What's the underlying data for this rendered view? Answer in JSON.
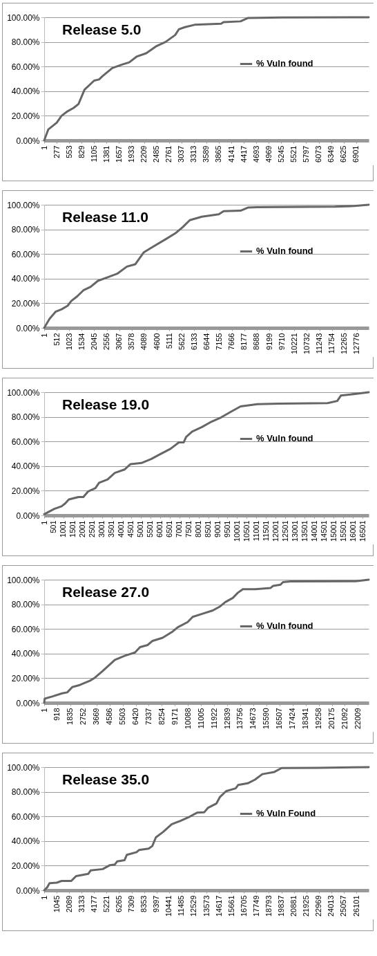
{
  "chart_data": [
    {
      "type": "line",
      "title": "Release 5.0",
      "legend": "right",
      "grid": "y",
      "xlim": [
        1,
        7180
      ],
      "xticks": [
        1,
        277,
        553,
        829,
        1105,
        1381,
        1657,
        1933,
        2209,
        2485,
        2761,
        3037,
        3313,
        3589,
        3865,
        4141,
        4417,
        4693,
        4969,
        5245,
        5521,
        5797,
        6073,
        6349,
        6625,
        6901
      ],
      "ylim": [
        0,
        100
      ],
      "yticks": [
        {
          "value": 0,
          "label": "0.00%"
        },
        {
          "value": 20,
          "label": "20.00%"
        },
        {
          "value": 40,
          "label": "40.00%"
        },
        {
          "value": 60,
          "label": "60.00%"
        },
        {
          "value": 80,
          "label": "80.00%"
        },
        {
          "value": 100,
          "label": "100.00%"
        }
      ],
      "x": [
        1,
        91,
        278,
        385,
        519,
        652,
        760,
        893,
        1107,
        1214,
        1294,
        1508,
        1722,
        1882,
        2043,
        2257,
        2471,
        2685,
        2899,
        2979,
        3113,
        3327,
        3915,
        3968,
        4343,
        4503,
        5252,
        7180
      ],
      "series": [
        {
          "name": "% Vuln found",
          "color": "#666666",
          "values": [
            0,
            8.9,
            14.4,
            20,
            23.7,
            26.4,
            29.6,
            41.2,
            48.6,
            49.5,
            52.3,
            58.8,
            61.6,
            63.4,
            68,
            70.8,
            76.3,
            80,
            85.6,
            90.2,
            92,
            93.9,
            94.8,
            96.1,
            96.7,
            99.4,
            99.8,
            100
          ]
        }
      ]
    },
    {
      "type": "line",
      "title": "Release 11.0",
      "legend": "right",
      "grid": "y",
      "xlim": [
        1,
        13260
      ],
      "xticks": [
        1,
        512,
        1023,
        1534,
        2045,
        2556,
        3067,
        3578,
        4089,
        4600,
        5111,
        5622,
        6133,
        6644,
        7155,
        7666,
        8177,
        8688,
        9199,
        9710,
        10221,
        10732,
        11243,
        11754,
        12265,
        12776
      ],
      "ylim": [
        0,
        100
      ],
      "yticks": [
        {
          "value": 0,
          "label": "0.00%"
        },
        {
          "value": 20,
          "label": "20.00%"
        },
        {
          "value": 40,
          "label": "40.00%"
        },
        {
          "value": 60,
          "label": "60.00%"
        },
        {
          "value": 80,
          "label": "80.00%"
        },
        {
          "value": 100,
          "label": "100.00%"
        }
      ],
      "x": [
        1,
        218,
        465,
        712,
        959,
        1107,
        1354,
        1601,
        1898,
        2194,
        2590,
        2985,
        3380,
        3726,
        4072,
        4467,
        4961,
        5357,
        5653,
        5950,
        6444,
        7136,
        7333,
        8025,
        8322,
        8717,
        11879,
        12670,
        13260
      ],
      "series": [
        {
          "name": "% Vuln found",
          "color": "#666666",
          "values": [
            0,
            7.3,
            13.1,
            15.1,
            18,
            21.8,
            25.7,
            30.5,
            33.4,
            38.2,
            41.1,
            44,
            49.8,
            51.7,
            61.4,
            66.2,
            72,
            76.8,
            81.7,
            87.5,
            90.3,
            92.3,
            94.8,
            95.2,
            97.7,
            98.1,
            98.5,
            99,
            100
          ]
        }
      ]
    },
    {
      "type": "line",
      "title": "Release 19.0",
      "legend": "right",
      "grid": "y",
      "xlim": [
        1,
        16820
      ],
      "xticks": [
        1,
        501,
        1001,
        1501,
        2001,
        2501,
        3001,
        3501,
        4001,
        4501,
        5001,
        5501,
        6001,
        6501,
        7001,
        7501,
        8001,
        8501,
        9001,
        9501,
        10001,
        10501,
        11001,
        11501,
        12001,
        12501,
        13001,
        13501,
        14001,
        14501,
        15001,
        15501,
        16001,
        16501
      ],
      "ylim": [
        0,
        100
      ],
      "yticks": [
        {
          "value": 0,
          "label": "0.00%"
        },
        {
          "value": 20,
          "label": "20.00%"
        },
        {
          "value": 40,
          "label": "40.00%"
        },
        {
          "value": 60,
          "label": "60.00%"
        },
        {
          "value": 80,
          "label": "80.00%"
        },
        {
          "value": 100,
          "label": "100.00%"
        }
      ],
      "x": [
        1,
        527,
        903,
        1091,
        1279,
        1780,
        2031,
        2282,
        2658,
        2846,
        3285,
        3661,
        4162,
        4476,
        5040,
        5541,
        6042,
        6543,
        6982,
        7233,
        7358,
        7671,
        8173,
        8674,
        9176,
        9677,
        10178,
        11055,
        12183,
        14689,
        15190,
        15378,
        16192,
        16820
      ],
      "series": [
        {
          "name": "% Vuln found",
          "color": "#666666",
          "values": [
            0.9,
            5.3,
            7.4,
            9.7,
            12.9,
            14.9,
            14.9,
            19.5,
            22.1,
            26.5,
            29.2,
            34.5,
            37.2,
            41.6,
            42.5,
            45.7,
            49.9,
            54,
            59.3,
            59.3,
            63.7,
            68.1,
            71.7,
            76.1,
            79.6,
            84.1,
            88.5,
            90.3,
            90.8,
            91.2,
            92.9,
            97.3,
            98.8,
            100
          ]
        }
      ]
    },
    {
      "type": "line",
      "title": "Release 27.0",
      "legend": "right",
      "grid": "y",
      "xlim": [
        1,
        22766
      ],
      "xticks": [
        1,
        918,
        1835,
        2752,
        3669,
        4586,
        5503,
        6420,
        7337,
        8254,
        9171,
        10088,
        11005,
        11922,
        12839,
        13756,
        14673,
        15590,
        16507,
        17424,
        18341,
        19258,
        20175,
        21092,
        22009
      ],
      "ylim": [
        0,
        100
      ],
      "yticks": [
        {
          "value": 0,
          "label": "0.00%"
        },
        {
          "value": 20,
          "label": "20.00%"
        },
        {
          "value": 40,
          "label": "40.00%"
        },
        {
          "value": 60,
          "label": "60.00%"
        },
        {
          "value": 80,
          "label": "80.00%"
        },
        {
          "value": 100,
          "label": "100.00%"
        }
      ],
      "x": [
        1,
        36,
        564,
        1268,
        1620,
        1972,
        2500,
        3204,
        3556,
        4083,
        4963,
        5667,
        6371,
        6723,
        7251,
        7603,
        8307,
        9011,
        9363,
        10067,
        10419,
        11123,
        11826,
        12354,
        12706,
        13234,
        13586,
        13938,
        14818,
        15873,
        16049,
        16577,
        16753,
        17281,
        21851,
        22766
      ],
      "series": [
        {
          "name": "% Vuln found",
          "color": "#666666",
          "values": [
            0,
            3.4,
            5.1,
            7.7,
            8.5,
            12.8,
            14.5,
            17.9,
            20.4,
            25.6,
            34.9,
            38.3,
            40.9,
            45.2,
            46.9,
            50.3,
            52.8,
            57.9,
            61.3,
            65.6,
            69.8,
            72.4,
            75,
            78.4,
            81.8,
            85.2,
            89.4,
            92.3,
            92.3,
            93.2,
            94.9,
            95.9,
            98,
            98.6,
            98.8,
            100
          ]
        }
      ]
    },
    {
      "type": "line",
      "title": "Release 35.0",
      "legend": "right",
      "grid": "y",
      "xlim": [
        1,
        27140
      ],
      "xticks": [
        1,
        1045,
        2089,
        3133,
        4177,
        5221,
        6265,
        7309,
        8353,
        9397,
        10441,
        11485,
        12529,
        13573,
        14617,
        15661,
        16705,
        17749,
        18793,
        19837,
        20881,
        21925,
        22969,
        24013,
        25057,
        26101
      ],
      "ylim": [
        0,
        100
      ],
      "yticks": [
        {
          "value": 0,
          "label": "0.00%"
        },
        {
          "value": 20,
          "label": "20.00%"
        },
        {
          "value": 40,
          "label": "40.00%"
        },
        {
          "value": 60,
          "label": "60.00%"
        },
        {
          "value": 80,
          "label": "80.00%"
        },
        {
          "value": 100,
          "label": "100.00%"
        }
      ],
      "x": [
        1,
        244,
        446,
        1052,
        1457,
        2266,
        2670,
        3681,
        3883,
        4894,
        5501,
        5905,
        6107,
        6714,
        6916,
        7725,
        7927,
        8736,
        9039,
        9342,
        9949,
        10657,
        11365,
        12174,
        12780,
        13387,
        13690,
        14398,
        14702,
        15207,
        16016,
        16218,
        17027,
        17634,
        18241,
        19252,
        19858,
        22891,
        27140
      ],
      "series": [
        {
          "name": "% Vuln Found",
          "color": "#666666",
          "values": [
            0,
            2.3,
            5.8,
            6.2,
            7.6,
            7.6,
            11.5,
            13.3,
            16.1,
            17.2,
            20.4,
            20.9,
            23.5,
            24.4,
            28.8,
            31,
            32.7,
            33.8,
            35.9,
            43,
            47.4,
            53.6,
            56.3,
            59.8,
            63,
            63.4,
            66.9,
            70.4,
            75.8,
            80.5,
            82.8,
            85.5,
            86.9,
            89.9,
            94.3,
            96.1,
            99.3,
            99.5,
            100
          ]
        }
      ]
    }
  ]
}
